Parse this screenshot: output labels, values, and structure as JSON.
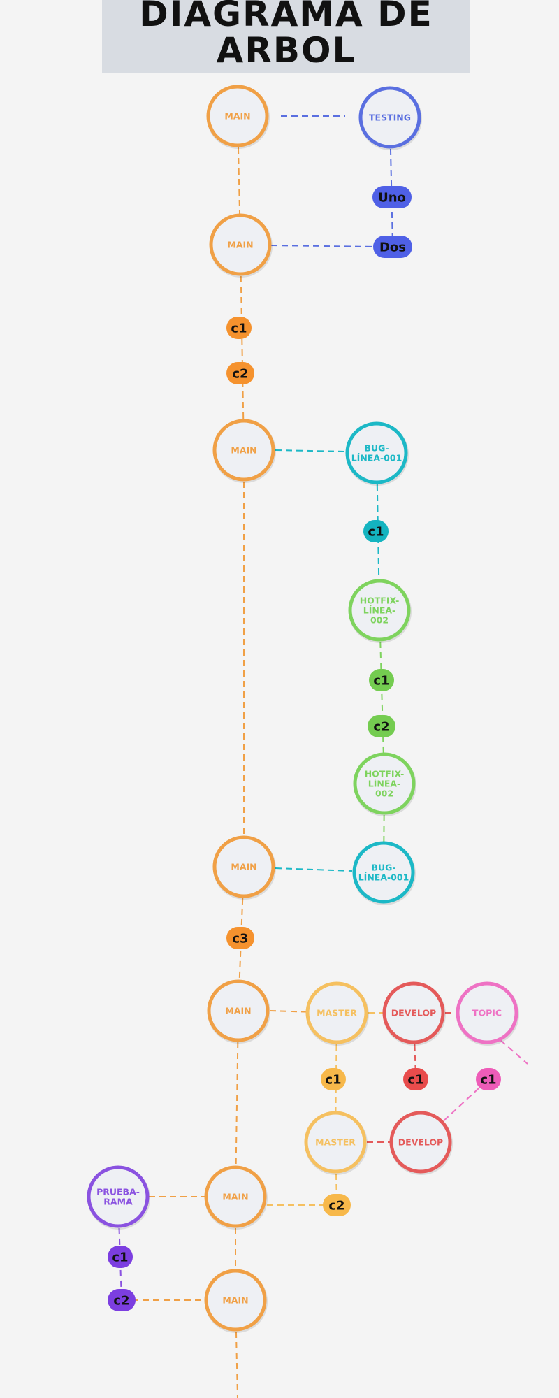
{
  "title": "DIAGRAMA DE ARBOL",
  "colors": {
    "main": "#f0a046",
    "testing": "#5a6fe0",
    "bug": "#1cb8c6",
    "hotfix": "#7ed35e",
    "master": "#f5c060",
    "develop": "#e45a5a",
    "topic": "#ee72c4",
    "prueba": "#8a52e0",
    "node_fill": "#eef0f4",
    "commit_main": "#f5922e",
    "commit_testing": "#4f60e6",
    "commit_bug": "#14b4c0",
    "commit_hotfix": "#74cc50",
    "commit_master": "#f7b84a",
    "commit_develop": "#e84c4c",
    "commit_topic": "#ee5cb8",
    "commit_prueba": "#7c3ee0"
  },
  "nodes": [
    {
      "id": "main1",
      "lines": [
        "MAIN"
      ],
      "kind": "main"
    },
    {
      "id": "testing",
      "lines": [
        "TESTING"
      ],
      "kind": "testing"
    },
    {
      "id": "main2",
      "lines": [
        "MAIN"
      ],
      "kind": "main"
    },
    {
      "id": "main3",
      "lines": [
        "MAIN"
      ],
      "kind": "main"
    },
    {
      "id": "bug1",
      "lines": [
        "BUG-",
        "LÍNEA-001"
      ],
      "kind": "bug"
    },
    {
      "id": "hotfix1",
      "lines": [
        "HOTFIX-",
        "LÍNEA-",
        "002"
      ],
      "kind": "hotfix"
    },
    {
      "id": "hotfix2",
      "lines": [
        "HOTFIX-",
        "LÍNEA-",
        "002"
      ],
      "kind": "hotfix"
    },
    {
      "id": "main4",
      "lines": [
        "MAIN"
      ],
      "kind": "main"
    },
    {
      "id": "bug2",
      "lines": [
        "BUG-",
        "LÍNEA-001"
      ],
      "kind": "bug"
    },
    {
      "id": "main5",
      "lines": [
        "MAIN"
      ],
      "kind": "main"
    },
    {
      "id": "master1",
      "lines": [
        "MASTER"
      ],
      "kind": "master"
    },
    {
      "id": "develop1",
      "lines": [
        "DEVELOP"
      ],
      "kind": "develop"
    },
    {
      "id": "topic",
      "lines": [
        "TOPIC"
      ],
      "kind": "topic"
    },
    {
      "id": "master2",
      "lines": [
        "MASTER"
      ],
      "kind": "master"
    },
    {
      "id": "develop2",
      "lines": [
        "DEVELOP"
      ],
      "kind": "develop"
    },
    {
      "id": "prueba",
      "lines": [
        "PRUEBA-",
        "RAMA"
      ],
      "kind": "prueba"
    },
    {
      "id": "main6",
      "lines": [
        "MAIN"
      ],
      "kind": "main"
    },
    {
      "id": "main7",
      "lines": [
        "MAIN"
      ],
      "kind": "main"
    }
  ],
  "commits": [
    {
      "id": "t_uno",
      "label": "Uno",
      "kind": "testing"
    },
    {
      "id": "t_dos",
      "label": "Dos",
      "kind": "testing"
    },
    {
      "id": "m_c1",
      "label": "c1",
      "kind": "main"
    },
    {
      "id": "m_c2",
      "label": "c2",
      "kind": "main"
    },
    {
      "id": "b_c1",
      "label": "c1",
      "kind": "bug"
    },
    {
      "id": "h_c1",
      "label": "c1",
      "kind": "hotfix"
    },
    {
      "id": "h_c2",
      "label": "c2",
      "kind": "hotfix"
    },
    {
      "id": "m_c3",
      "label": "c3",
      "kind": "main"
    },
    {
      "id": "ma_c1",
      "label": "c1",
      "kind": "master"
    },
    {
      "id": "d_c1",
      "label": "c1",
      "kind": "develop"
    },
    {
      "id": "tp_c1",
      "label": "c1",
      "kind": "topic"
    },
    {
      "id": "ma_c2",
      "label": "c2",
      "kind": "master"
    },
    {
      "id": "p_c1",
      "label": "c1",
      "kind": "prueba"
    },
    {
      "id": "p_c2",
      "label": "c2",
      "kind": "prueba"
    }
  ]
}
